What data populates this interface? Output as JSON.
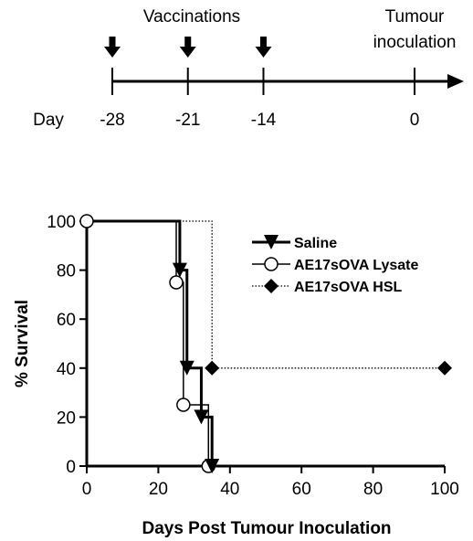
{
  "timeline": {
    "vaccinations_label": "Vaccinations",
    "tumour_label_line1": "Tumour",
    "tumour_label_line2": "inoculation",
    "day_label": "Day",
    "days": [
      "-28",
      "-21",
      "-14",
      "0"
    ],
    "vaccination_days": [
      -28,
      -21,
      -14
    ],
    "inoculation_day": 0
  },
  "chart_data": {
    "type": "line",
    "title": "",
    "xlabel": "Days Post Tumour Inoculation",
    "ylabel": "% Survival",
    "xlim": [
      0,
      100
    ],
    "ylim": [
      0,
      100
    ],
    "x_ticks": [
      "0",
      "20",
      "40",
      "60",
      "80",
      "100"
    ],
    "y_ticks": [
      "0",
      "20",
      "40",
      "60",
      "80",
      "100"
    ],
    "legend_position": "top-right",
    "series": [
      {
        "name": "Saline",
        "style": "solid-thick",
        "marker": "triangle-down",
        "steps": [
          [
            0,
            100
          ],
          [
            26,
            80
          ],
          [
            28,
            40
          ],
          [
            32,
            20
          ],
          [
            35,
            0
          ]
        ],
        "points": [
          [
            26,
            80
          ],
          [
            28,
            40
          ],
          [
            32,
            20
          ],
          [
            35,
            0
          ]
        ]
      },
      {
        "name": "AE17sOVA Lysate",
        "style": "solid-thin",
        "marker": "circle-open",
        "steps": [
          [
            0,
            100
          ],
          [
            25,
            75
          ],
          [
            27,
            25
          ],
          [
            34,
            0
          ]
        ],
        "points": [
          [
            0,
            100
          ],
          [
            25,
            75
          ],
          [
            27,
            25
          ],
          [
            34,
            0
          ]
        ]
      },
      {
        "name": "AE17sOVA HSL",
        "style": "dotted",
        "marker": "diamond",
        "steps": [
          [
            0,
            100
          ],
          [
            35,
            40
          ],
          [
            100,
            40
          ]
        ],
        "points": [
          [
            35,
            40
          ],
          [
            100,
            40
          ]
        ]
      }
    ]
  }
}
